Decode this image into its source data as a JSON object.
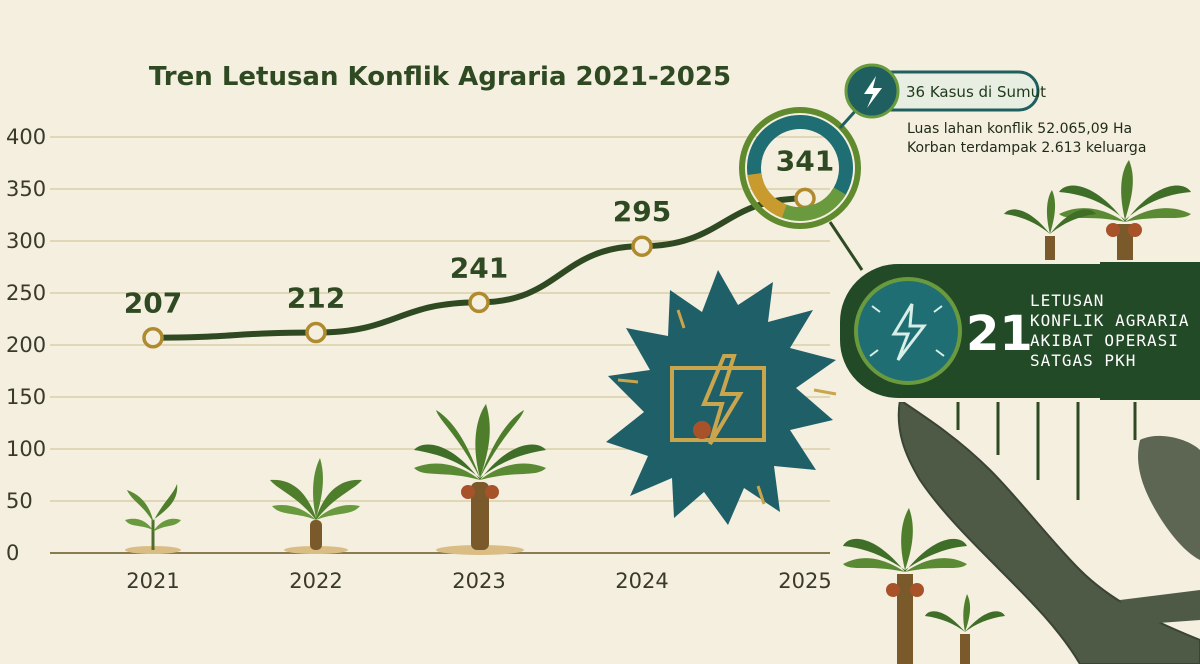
{
  "chart_data": {
    "type": "line",
    "title": "Tren Letusan Konflik Agraria 2021-2025",
    "categories": [
      "2021",
      "2022",
      "2023",
      "2024",
      "2025"
    ],
    "values": [
      207,
      212,
      241,
      295,
      341
    ],
    "data_labels": [
      "207",
      "212",
      "241",
      "295",
      "341"
    ],
    "ylim": [
      0,
      400
    ],
    "yticks": [
      "400",
      "350",
      "300",
      "250",
      "200",
      "150",
      "100",
      "50",
      "0"
    ],
    "ytick_values": [
      400,
      350,
      300,
      250,
      200,
      150,
      100,
      50,
      0
    ],
    "grid": true,
    "colors": {
      "line": "#2f4a22",
      "marker_stroke": "#b08a2e",
      "marker_fill": "#f4efdf",
      "grid": "#d9cfa8"
    }
  },
  "callout": {
    "badge": "36 Kasus di Sumut",
    "note_line1": "Luas lahan konflik 52.065,09 Ha",
    "note_line2": "Korban terdampak 2.613 keluarga",
    "icon": "lightning-icon",
    "colors": {
      "badge_bg": "#1f5f5f",
      "ring_teal": "#1f6e74",
      "ring_green": "#5f8a2e",
      "ring_gold": "#c99a2e"
    }
  },
  "panel": {
    "number": "21",
    "line1": "LETUSAN",
    "line2": "KONFLIK AGRARIA",
    "line3": "AKIBAT OPERASI",
    "line4": "SATGAS PKH",
    "icon": "lightning-icon",
    "colors": {
      "bg": "#234a27",
      "icon_bg": "#1f6e74"
    }
  },
  "decor": {
    "palm_icon": "palm-tree-icon",
    "burst_icon": "starburst-icon",
    "map_icon": "sumatra-map-icon"
  }
}
